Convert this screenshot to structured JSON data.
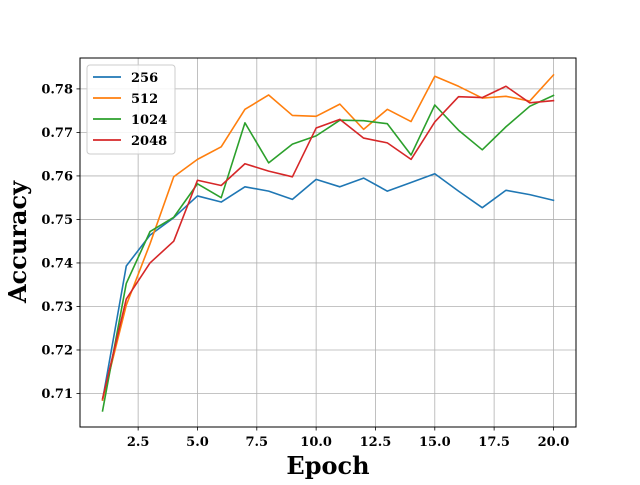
{
  "chart_data": {
    "type": "line",
    "title": "",
    "xlabel": "Epoch",
    "ylabel": "Accuracy",
    "xlim": [
      0.05,
      20.95
    ],
    "ylim": [
      0.7023,
      0.7871
    ],
    "grid": true,
    "legend_position": "top-left",
    "xticks": [
      2.5,
      5.0,
      7.5,
      10.0,
      12.5,
      15.0,
      17.5,
      20.0
    ],
    "xtick_labels": [
      "2.5",
      "5.0",
      "7.5",
      "10.0",
      "12.5",
      "15.0",
      "17.5",
      "20.0"
    ],
    "yticks": [
      0.71,
      0.72,
      0.73,
      0.74,
      0.75,
      0.76,
      0.77,
      0.78
    ],
    "ytick_labels": [
      "0.71",
      "0.72",
      "0.73",
      "0.74",
      "0.75",
      "0.76",
      "0.77",
      "0.78"
    ],
    "x": [
      1,
      2,
      3,
      4,
      5,
      6,
      7,
      8,
      9,
      10,
      11,
      12,
      13,
      14,
      15,
      16,
      17,
      18,
      19,
      20
    ],
    "series": [
      {
        "name": "256",
        "color": "#1f77b4",
        "values": [
          0.7085,
          0.7393,
          0.7464,
          0.7504,
          0.7554,
          0.754,
          0.7575,
          0.7565,
          0.7546,
          0.7592,
          0.7575,
          0.7595,
          0.7565,
          0.7585,
          0.7605,
          0.7565,
          0.7527,
          0.7567,
          0.7557,
          0.7544
        ]
      },
      {
        "name": "512",
        "color": "#ff7f0e",
        "values": [
          0.7085,
          0.7303,
          0.7444,
          0.7598,
          0.7638,
          0.7667,
          0.7753,
          0.7786,
          0.7739,
          0.7737,
          0.7765,
          0.7707,
          0.7753,
          0.7725,
          0.7829,
          0.7806,
          0.7779,
          0.7783,
          0.7772,
          0.7832
        ]
      },
      {
        "name": "1024",
        "color": "#2ca02c",
        "values": [
          0.706,
          0.7353,
          0.7472,
          0.7505,
          0.7582,
          0.755,
          0.7722,
          0.763,
          0.7673,
          0.7692,
          0.7728,
          0.7727,
          0.772,
          0.7648,
          0.7763,
          0.7705,
          0.766,
          0.7713,
          0.776,
          0.7785
        ]
      },
      {
        "name": "2048",
        "color": "#d62728",
        "values": [
          0.7088,
          0.7317,
          0.74,
          0.745,
          0.759,
          0.7578,
          0.7628,
          0.7611,
          0.7598,
          0.771,
          0.773,
          0.7687,
          0.7676,
          0.7638,
          0.7724,
          0.7782,
          0.778,
          0.7806,
          0.7768,
          0.7773
        ]
      }
    ]
  }
}
